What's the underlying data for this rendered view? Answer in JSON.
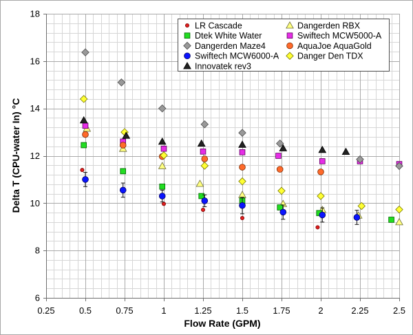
{
  "chart_data": {
    "type": "scatter",
    "xlabel": "Flow Rate (GPM)",
    "ylabel": "Delta T (CPU-water In) °C",
    "xlim": [
      0.25,
      2.5
    ],
    "ylim": [
      6,
      18
    ],
    "xticks": [
      0.25,
      0.5,
      0.75,
      1,
      1.25,
      1.5,
      1.75,
      2,
      2.25,
      2.5
    ],
    "yticks": [
      6,
      8,
      10,
      12,
      14,
      16,
      18
    ],
    "grid": true,
    "legend": "top-right",
    "series": [
      {
        "name": "LR Cascade",
        "marker": "dot",
        "color": "#e01f1f",
        "outline": "#7a0000",
        "x": [
          0.48,
          1.0,
          1.25,
          1.5,
          1.98
        ],
        "y": [
          11.4,
          9.97,
          9.72,
          9.37,
          8.98
        ]
      },
      {
        "name": "Dangerden RBX",
        "marker": "triangle",
        "color": "#ffff80",
        "outline": "#6b6b3a",
        "x": [
          0.51,
          0.74,
          0.99,
          1.23,
          1.5,
          1.76,
          2.01,
          2.24,
          2.5
        ],
        "y": [
          13.15,
          12.3,
          11.57,
          10.82,
          10.35,
          9.97,
          9.72,
          9.48,
          9.2
        ]
      },
      {
        "name": "Dtek White Water",
        "marker": "square",
        "color": "#22dd22",
        "outline": "#006400",
        "x": [
          0.49,
          0.74,
          0.99,
          1.24,
          1.5,
          1.74,
          1.99,
          2.45
        ],
        "y": [
          12.45,
          11.35,
          10.7,
          10.3,
          10.1,
          9.82,
          9.58,
          9.3
        ]
      },
      {
        "name": "Swiftech MCW5000-A",
        "marker": "square",
        "color": "#e62ee6",
        "outline": "#5c005c",
        "x": [
          0.5,
          0.74,
          1.0,
          1.25,
          1.5,
          1.73,
          2.01,
          2.25,
          2.5
        ],
        "y": [
          13.27,
          12.6,
          12.3,
          12.18,
          12.15,
          12.0,
          11.77,
          11.77,
          11.65
        ]
      },
      {
        "name": "Dangerden Maze4",
        "marker": "diamond",
        "color": "#999999",
        "outline": "#4d4d4d",
        "x": [
          0.5,
          0.73,
          0.99,
          1.26,
          1.5,
          1.74,
          2.25,
          2.5
        ],
        "y": [
          16.37,
          15.1,
          14.0,
          13.33,
          12.97,
          12.52,
          11.85,
          11.57
        ]
      },
      {
        "name": "AquaJoe AquaGold",
        "marker": "circle",
        "color": "#ff6a2b",
        "outline": "#7a2a00",
        "x": [
          0.5,
          0.74,
          0.99,
          1.26,
          1.5,
          1.74,
          2.0
        ],
        "y": [
          12.9,
          12.45,
          11.97,
          11.87,
          11.52,
          11.43,
          11.32
        ]
      },
      {
        "name": "Swiftech MCW6000-A",
        "marker": "circle",
        "color": "#0a14ff",
        "outline": "#000055",
        "x": [
          0.5,
          0.74,
          0.99,
          1.26,
          1.5,
          1.76,
          2.01,
          2.23
        ],
        "y": [
          11.0,
          10.55,
          10.3,
          10.1,
          9.9,
          9.62,
          9.5,
          9.4
        ],
        "yerr": [
          0.3,
          0.3,
          0.25,
          0.25,
          0.35,
          0.3,
          0.3,
          0.3
        ]
      },
      {
        "name": "Danger Den TDX",
        "marker": "diamond",
        "color": "#ffff33",
        "outline": "#777700",
        "x": [
          0.49,
          0.75,
          1.0,
          1.26,
          1.5,
          1.75,
          2.0,
          2.26,
          2.5
        ],
        "y": [
          14.4,
          13.0,
          12.02,
          11.58,
          10.92,
          10.52,
          10.3,
          9.88,
          9.73
        ]
      },
      {
        "name": "Innovatek rev3",
        "marker": "triangle",
        "color": "#222222",
        "outline": "#000000",
        "x": [
          0.49,
          0.76,
          0.99,
          1.24,
          1.5,
          1.76,
          2.01,
          2.16
        ],
        "y": [
          13.5,
          12.85,
          12.6,
          12.52,
          12.47,
          12.32,
          12.25,
          12.17
        ]
      }
    ]
  }
}
